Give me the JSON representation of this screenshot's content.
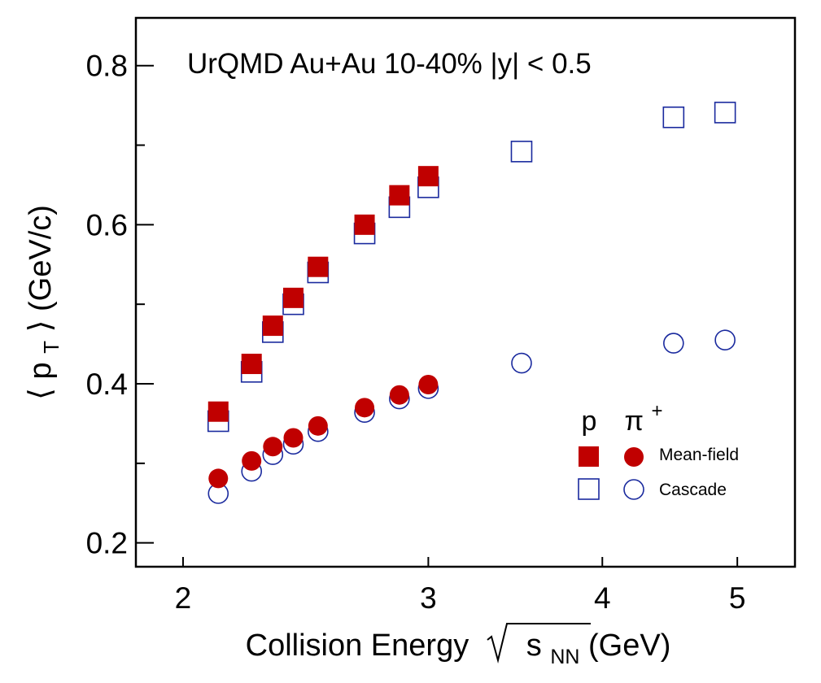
{
  "chart_data": {
    "type": "scatter",
    "title": "UrQMD Au+Au 10-40% |y| < 0.5",
    "xlabel": {
      "prefix": "Collision Energy",
      "var": "s",
      "sub": "NN",
      "suffix": " (GeV)"
    },
    "ylabel": {
      "lang": "⟨",
      "var": "p",
      "sub": "T",
      "rang": "⟩",
      "unit": " (GeV/c)"
    },
    "x_scale": "log",
    "xlim": [
      1.85,
      5.5
    ],
    "ylim": [
      0.17,
      0.86
    ],
    "x_ticks": [
      2,
      3,
      4,
      5
    ],
    "x_tick_labels": [
      "2",
      "3",
      "4",
      "5"
    ],
    "y_ticks": [
      0.2,
      0.4,
      0.6,
      0.8
    ],
    "y_tick_labels": [
      "0.2",
      "0.4",
      "0.6",
      "0.8"
    ],
    "y_minor_ticks": [
      0.3,
      0.5,
      0.7
    ],
    "legend": {
      "position": "lower-right",
      "col_headers": {
        "p": "p",
        "pi_base": "π",
        "pi_sup": "+"
      },
      "rows": [
        "Mean-field",
        "Cascade"
      ]
    },
    "colors": {
      "mean_field": "#c00000",
      "cascade": "#1a2a9e"
    },
    "series": [
      {
        "particle": "p",
        "mode": "Mean-field",
        "marker": "filled-square",
        "x": [
          2.12,
          2.24,
          2.32,
          2.4,
          2.5,
          2.7,
          2.86,
          3.0
        ],
        "y": [
          0.365,
          0.425,
          0.473,
          0.508,
          0.547,
          0.6,
          0.637,
          0.661
        ]
      },
      {
        "particle": "p",
        "mode": "Cascade",
        "marker": "open-square",
        "x": [
          2.12,
          2.24,
          2.32,
          2.4,
          2.5,
          2.7,
          2.86,
          3.0,
          3.5,
          4.5,
          4.9
        ],
        "y": [
          0.353,
          0.415,
          0.465,
          0.5,
          0.54,
          0.589,
          0.622,
          0.647,
          0.692,
          0.735,
          0.741
        ]
      },
      {
        "particle": "pi+",
        "mode": "Mean-field",
        "marker": "filled-circle",
        "x": [
          2.12,
          2.24,
          2.32,
          2.4,
          2.5,
          2.7,
          2.86,
          3.0
        ],
        "y": [
          0.281,
          0.303,
          0.321,
          0.332,
          0.347,
          0.37,
          0.386,
          0.399
        ]
      },
      {
        "particle": "pi+",
        "mode": "Cascade",
        "marker": "open-circle",
        "x": [
          2.12,
          2.24,
          2.32,
          2.4,
          2.5,
          2.7,
          2.86,
          3.0,
          3.5,
          4.5,
          4.9
        ],
        "y": [
          0.262,
          0.29,
          0.311,
          0.324,
          0.34,
          0.364,
          0.381,
          0.394,
          0.426,
          0.451,
          0.455
        ]
      }
    ]
  }
}
